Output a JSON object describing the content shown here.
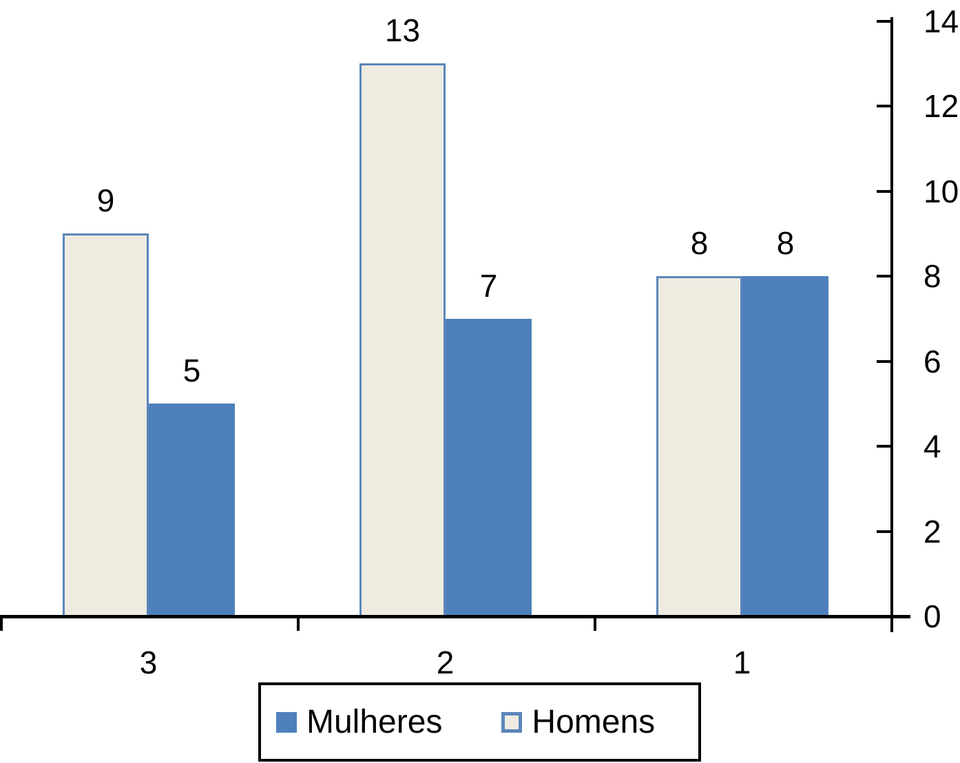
{
  "chart_data": {
    "type": "bar",
    "categories": [
      "3",
      "2",
      "1"
    ],
    "series": [
      {
        "name": "Homens",
        "values": [
          9,
          13,
          8
        ]
      },
      {
        "name": "Mulheres",
        "values": [
          5,
          7,
          8
        ]
      }
    ],
    "data_labels": [
      {
        "series": "Homens",
        "labels": [
          "9",
          "13",
          "8"
        ]
      },
      {
        "series": "Mulheres",
        "labels": [
          "5",
          "7",
          "8"
        ]
      }
    ],
    "ylim": [
      0,
      14
    ],
    "yticks": [
      "0",
      "2",
      "4",
      "6",
      "8",
      "10",
      "12",
      "14"
    ],
    "y_axis_side": "right",
    "grid": false,
    "legend_position": "bottom",
    "legend_order": [
      "Mulheres",
      "Homens"
    ]
  },
  "colors": {
    "mulheres_fill": "#4e80bb",
    "homens_fill": "#eeece1",
    "homens_border": "#5b86bb",
    "axis": "#000000",
    "text": "#000000",
    "background": "#ffffff"
  },
  "legend": {
    "items": [
      {
        "label": "Mulheres"
      },
      {
        "label": "Homens"
      }
    ]
  }
}
